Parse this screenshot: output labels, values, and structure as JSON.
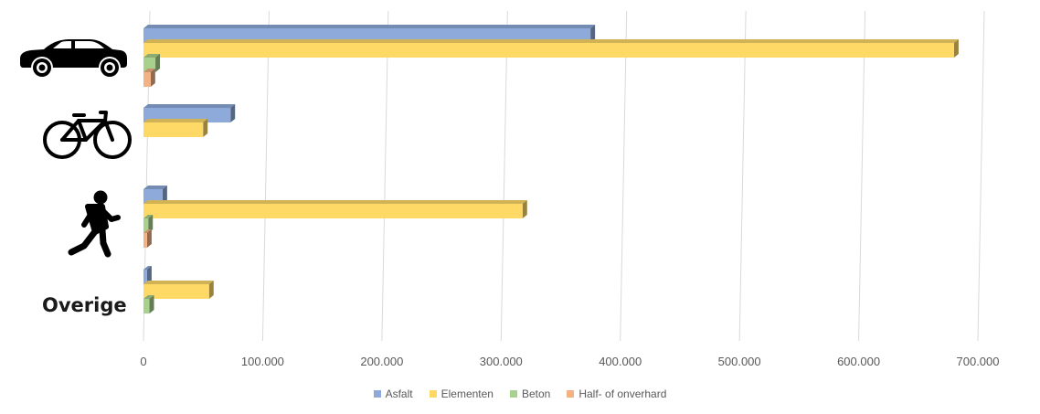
{
  "chart_data": {
    "type": "bar",
    "orientation": "horizontal",
    "style": "3d-clustered",
    "categories": [
      {
        "icon": "car-icon",
        "label": ""
      },
      {
        "icon": "bicycle-icon",
        "label": ""
      },
      {
        "icon": "pedestrian-icon",
        "label": ""
      },
      {
        "icon": "",
        "label": "Overige"
      }
    ],
    "series": [
      {
        "name": "Asfalt",
        "color": "#8eaadb",
        "values": [
          375000,
          73000,
          16000,
          3000
        ]
      },
      {
        "name": "Elementen",
        "color": "#ffd966",
        "values": [
          680000,
          50000,
          318000,
          55000
        ]
      },
      {
        "name": "Beton",
        "color": "#a9d18e",
        "values": [
          10000,
          0,
          4000,
          5000
        ]
      },
      {
        "name": "Half- of onverhard",
        "color": "#f4b183",
        "values": [
          6000,
          0,
          3000,
          0
        ]
      }
    ],
    "xlim": [
      0,
      700000
    ],
    "ticks": [
      "0",
      "100.000",
      "200.000",
      "300.000",
      "400.000",
      "500.000",
      "600.000",
      "700.000"
    ],
    "grid": true,
    "legend_position": "bottom"
  }
}
